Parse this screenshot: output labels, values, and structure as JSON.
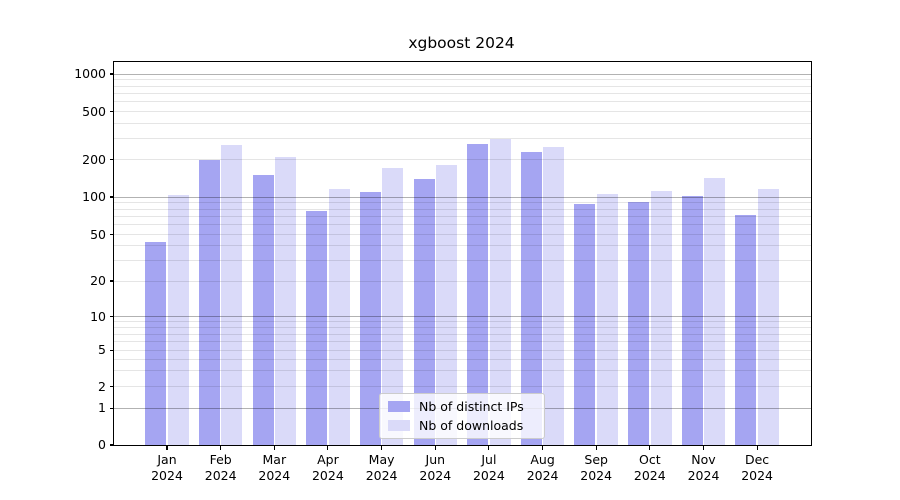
{
  "chart_data": {
    "type": "bar",
    "title": "xgboost 2024",
    "categories": [
      "Jan 2024",
      "Feb 2024",
      "Mar 2024",
      "Apr 2024",
      "May 2024",
      "Jun 2024",
      "Jul 2024",
      "Aug 2024",
      "Sep 2024",
      "Oct 2024",
      "Nov 2024",
      "Dec 2024"
    ],
    "months": [
      "Jan",
      "Feb",
      "Mar",
      "Apr",
      "May",
      "Jun",
      "Jul",
      "Aug",
      "Sep",
      "Oct",
      "Nov",
      "Dec"
    ],
    "year_label": "2024",
    "series": [
      {
        "name": "Nb of distinct IPs",
        "color": "#a5a5f2",
        "values": [
          43,
          197,
          150,
          77,
          110,
          139,
          270,
          231,
          88,
          91,
          101,
          72
        ]
      },
      {
        "name": "Nb of downloads",
        "color": "#dadaf9",
        "values": [
          104,
          262,
          210,
          117,
          171,
          182,
          296,
          255,
          105,
          112,
          141,
          115
        ]
      }
    ],
    "yticks": [
      0,
      1,
      2,
      5,
      10,
      20,
      50,
      100,
      200,
      500,
      1000
    ],
    "ytick_labels": [
      "0",
      "1",
      "2",
      "5",
      "10",
      "20",
      "50",
      "100",
      "200",
      "500",
      "1000"
    ],
    "yscale": "symlog",
    "ylim": [
      0,
      1250
    ],
    "grid": "horizontal, major at powers of 10 (darker) + log minors (lighter), drawn over bars",
    "legend": {
      "position": "inside lower-center",
      "items": [
        "Nb of distinct IPs",
        "Nb of downloads"
      ]
    },
    "axis_color": "#000000",
    "background_color": "#ffffff"
  }
}
